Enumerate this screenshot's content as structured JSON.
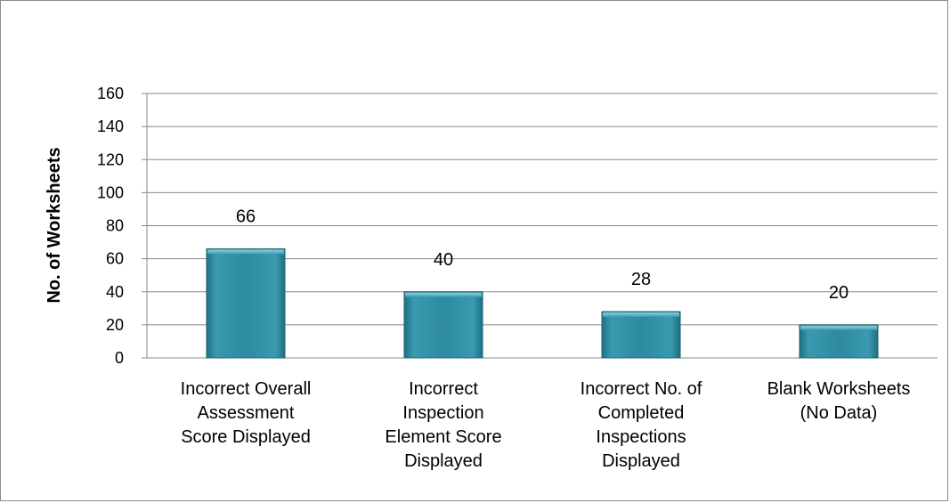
{
  "chart_data": {
    "type": "bar",
    "title": "",
    "xlabel": "",
    "ylabel": "No. of Worksheets",
    "ylim": [
      0,
      160
    ],
    "yticks": [
      0,
      20,
      40,
      60,
      80,
      100,
      120,
      140,
      160
    ],
    "grid": true,
    "legend": "none",
    "bar_color": "#2e8ba0",
    "categories": [
      [
        "Incorrect Overall",
        "Assessment",
        "Score Displayed"
      ],
      [
        "Incorrect",
        "Inspection",
        "Element Score",
        "Displayed"
      ],
      [
        "Incorrect No. of",
        "Completed",
        "Inspections",
        "Displayed"
      ],
      [
        "Blank Worksheets",
        "(No Data)"
      ]
    ],
    "values": [
      66,
      40,
      28,
      20
    ]
  }
}
